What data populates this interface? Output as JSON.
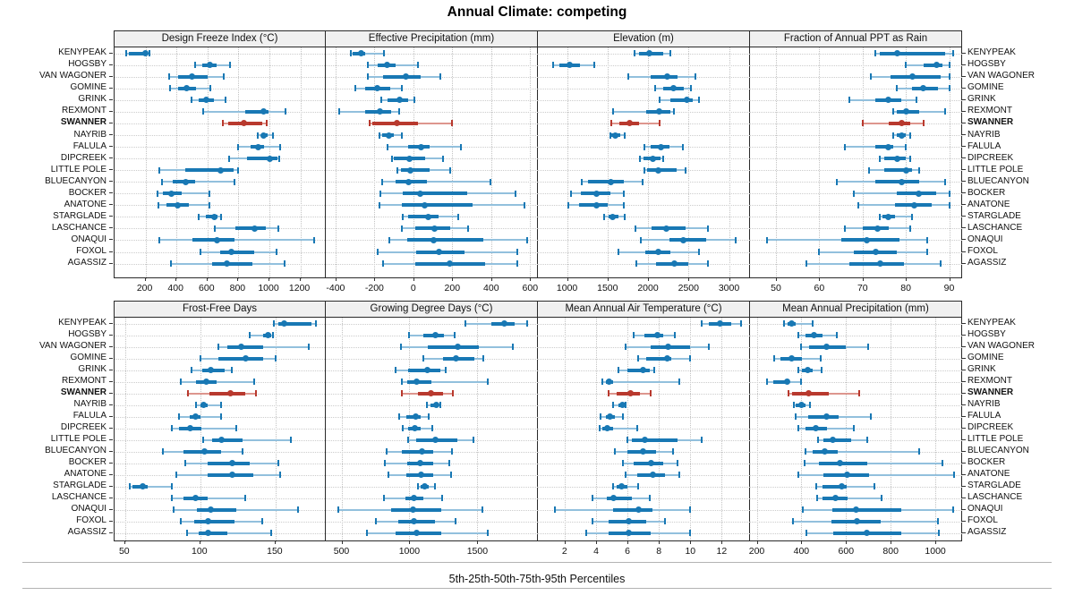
{
  "title": "Annual Climate: competing",
  "caption": "5th-25th-50th-75th-95th Percentiles",
  "highlight_station": "SWANNER",
  "colors": {
    "series_blue": "#1878b4",
    "series_blue_light": "#92c0dd",
    "highlight_red": "#b8392e",
    "highlight_red_light": "#dd968e",
    "strip_bg": "#f0f0f0",
    "panel_border": "#2a2a2a",
    "grid": "#c9c9c9"
  },
  "stations": [
    "KENYPEAK",
    "HOGSBY",
    "VAN WAGONER",
    "GOMINE",
    "GRINK",
    "REXMONT",
    "SWANNER",
    "NAYRIB",
    "FALULA",
    "DIPCREEK",
    "LITTLE POLE",
    "BLUECANYON",
    "BOCKER",
    "ANATONE",
    "STARGLADE",
    "LASCHANCE",
    "ONAQUI",
    "FOXOL",
    "AGASSIZ"
  ],
  "chart_data": {
    "type": "scatter",
    "mark": "dot-whisker (5th/25th/50th/75th/95th percentile ranges per station)",
    "percentile_labels": [
      "5th",
      "25th",
      "50th",
      "75th",
      "95th"
    ],
    "legend": "none",
    "grid": "dotted",
    "panels": [
      {
        "title": "Design Freeze Index (°C)",
        "xlim": [
          0,
          1370
        ],
        "ticks": [
          200,
          400,
          600,
          800,
          1000,
          1200
        ],
        "values": [
          [
            75,
            90,
            200,
            212,
            228
          ],
          [
            520,
            565,
            615,
            660,
            745
          ],
          [
            350,
            410,
            500,
            600,
            705
          ],
          [
            360,
            410,
            465,
            525,
            620
          ],
          [
            495,
            545,
            595,
            640,
            715
          ],
          [
            570,
            845,
            960,
            995,
            1105
          ],
          [
            700,
            735,
            835,
            955,
            980
          ],
          [
            925,
            945,
            965,
            990,
            1025
          ],
          [
            795,
            880,
            925,
            965,
            1070
          ],
          [
            740,
            855,
            1000,
            1050,
            1065
          ],
          [
            290,
            455,
            685,
            770,
            800
          ],
          [
            305,
            375,
            460,
            520,
            775
          ],
          [
            280,
            310,
            365,
            435,
            610
          ],
          [
            285,
            335,
            405,
            480,
            610
          ],
          [
            545,
            590,
            645,
            662,
            690
          ],
          [
            650,
            780,
            905,
            980,
            1055
          ],
          [
            290,
            505,
            660,
            775,
            1290
          ],
          [
            555,
            680,
            755,
            900,
            1045
          ],
          [
            365,
            630,
            725,
            890,
            1100
          ]
        ]
      },
      {
        "title": "Effective Precipitation (mm)",
        "xlim": [
          -450,
          640
        ],
        "ticks": [
          -400,
          -200,
          0,
          200,
          400,
          600
        ],
        "values": [
          [
            -320,
            -310,
            -270,
            -245,
            -150
          ],
          [
            -235,
            -185,
            -135,
            -90,
            25
          ],
          [
            -235,
            -155,
            -40,
            40,
            140
          ],
          [
            -300,
            -250,
            -185,
            -120,
            -60
          ],
          [
            -165,
            -135,
            -70,
            -25,
            5
          ],
          [
            -380,
            -250,
            -170,
            -115,
            -75
          ],
          [
            -225,
            -210,
            -85,
            25,
            200
          ],
          [
            -175,
            -160,
            -125,
            -100,
            -60
          ],
          [
            -135,
            -25,
            40,
            85,
            245
          ],
          [
            -110,
            -100,
            -20,
            60,
            150
          ],
          [
            -80,
            -65,
            -15,
            85,
            190
          ],
          [
            -160,
            -90,
            -25,
            70,
            395
          ],
          [
            -170,
            -55,
            35,
            275,
            525
          ],
          [
            -175,
            -60,
            60,
            305,
            570
          ],
          [
            -55,
            -25,
            75,
            130,
            230
          ],
          [
            -60,
            10,
            110,
            190,
            280
          ],
          [
            -125,
            -30,
            105,
            360,
            585
          ],
          [
            -185,
            15,
            130,
            265,
            535
          ],
          [
            -155,
            10,
            185,
            370,
            535
          ]
        ]
      },
      {
        "title": "Elevation (m)",
        "xlim": [
          640,
          3260
        ],
        "ticks": [
          1000,
          1500,
          2000,
          2500,
          3000
        ],
        "values": [
          [
            1830,
            1890,
            2020,
            2185,
            2280
          ],
          [
            825,
            905,
            1035,
            1155,
            1335
          ],
          [
            1760,
            2035,
            2235,
            2370,
            2580
          ],
          [
            2085,
            2185,
            2315,
            2445,
            2525
          ],
          [
            2140,
            2280,
            2475,
            2555,
            2630
          ],
          [
            1565,
            1980,
            2140,
            2280,
            2325
          ],
          [
            1550,
            1650,
            1770,
            1890,
            2140
          ],
          [
            1530,
            1550,
            1600,
            1660,
            1710
          ],
          [
            1955,
            2035,
            2165,
            2260,
            2435
          ],
          [
            1905,
            1945,
            2060,
            2150,
            2185
          ],
          [
            1960,
            1985,
            2130,
            2350,
            2465
          ],
          [
            1185,
            1260,
            1545,
            1705,
            1935
          ],
          [
            1045,
            1165,
            1360,
            1535,
            1705
          ],
          [
            1010,
            1150,
            1360,
            1500,
            1705
          ],
          [
            1455,
            1510,
            1560,
            1640,
            1715
          ],
          [
            1840,
            2040,
            2230,
            2470,
            2740
          ],
          [
            1910,
            2260,
            2440,
            2720,
            3080
          ],
          [
            1630,
            1965,
            2130,
            2280,
            2625
          ],
          [
            1850,
            2095,
            2325,
            2500,
            2740
          ]
        ]
      },
      {
        "title": "Fraction of Annual PPT as Rain",
        "xlim": [
          44,
          93
        ],
        "ticks": [
          50,
          60,
          70,
          80,
          90
        ],
        "values": [
          [
            73,
            74,
            78,
            89,
            91
          ],
          [
            80,
            84,
            87,
            88.5,
            90
          ],
          [
            72,
            76.5,
            81.5,
            88,
            90
          ],
          [
            78,
            81.5,
            84,
            87.5,
            90
          ],
          [
            67,
            73,
            76,
            79,
            82.5
          ],
          [
            77,
            78,
            80,
            83,
            89
          ],
          [
            70,
            76,
            79,
            81,
            84
          ],
          [
            77,
            78,
            79,
            80,
            81
          ],
          [
            66,
            73,
            76,
            77,
            80
          ],
          [
            74,
            75,
            78,
            80,
            81
          ],
          [
            71.5,
            75,
            80,
            81.5,
            83
          ],
          [
            64,
            73,
            79,
            83,
            89
          ],
          [
            68,
            78,
            83,
            87,
            90
          ],
          [
            69,
            77.5,
            82,
            86,
            90
          ],
          [
            74,
            74.5,
            76,
            77.5,
            81.5
          ],
          [
            66,
            70,
            73.5,
            76,
            81
          ],
          [
            48,
            65,
            71,
            78.5,
            85
          ],
          [
            60,
            68,
            73,
            78,
            85
          ],
          [
            57,
            67,
            74,
            79.5,
            88
          ]
        ]
      },
      {
        "title": "Frost-Free Days",
        "xlim": [
          43,
          184
        ],
        "ticks": [
          50,
          100,
          150
        ],
        "values": [
          [
            149,
            152,
            156,
            174,
            177
          ],
          [
            133,
            142,
            145,
            147,
            148
          ],
          [
            112,
            118,
            127,
            142,
            172
          ],
          [
            100,
            112,
            130,
            142,
            150
          ],
          [
            94,
            101,
            107,
            116,
            121
          ],
          [
            87,
            97,
            104,
            111,
            136
          ],
          [
            92,
            106,
            120,
            130,
            137
          ],
          [
            97,
            100,
            102,
            105,
            114
          ],
          [
            86,
            93,
            97,
            100,
            114
          ],
          [
            81,
            86,
            93,
            101,
            124
          ],
          [
            102,
            108,
            114,
            128,
            160
          ],
          [
            75,
            89,
            103,
            114,
            128
          ],
          [
            90,
            105,
            121,
            133,
            152
          ],
          [
            84,
            105,
            121,
            135,
            153
          ],
          [
            53,
            55,
            62,
            65,
            81
          ],
          [
            81,
            89,
            97,
            105,
            130
          ],
          [
            82,
            98,
            107,
            124,
            165
          ],
          [
            87,
            96,
            105,
            123,
            141
          ],
          [
            91,
            99,
            105,
            118,
            147
          ]
        ]
      },
      {
        "title": "Growing Degree Days (°C)",
        "xlim": [
          385,
          1945
        ],
        "ticks": [
          500,
          1000,
          1500
        ],
        "values": [
          [
            1410,
            1600,
            1695,
            1775,
            1865
          ],
          [
            995,
            1105,
            1190,
            1255,
            1330
          ],
          [
            935,
            1135,
            1355,
            1510,
            1760
          ],
          [
            1105,
            1245,
            1345,
            1480,
            1545
          ],
          [
            900,
            990,
            1130,
            1230,
            1265
          ],
          [
            945,
            985,
            1055,
            1160,
            1575
          ],
          [
            945,
            1060,
            1155,
            1245,
            1320
          ],
          [
            1130,
            1155,
            1200,
            1215,
            1230
          ],
          [
            925,
            975,
            1045,
            1085,
            1140
          ],
          [
            950,
            990,
            1040,
            1085,
            1165
          ],
          [
            990,
            1050,
            1190,
            1355,
            1470
          ],
          [
            835,
            945,
            1090,
            1175,
            1315
          ],
          [
            820,
            985,
            1080,
            1175,
            1290
          ],
          [
            845,
            980,
            1085,
            1175,
            1305
          ],
          [
            1065,
            1085,
            1115,
            1140,
            1190
          ],
          [
            810,
            970,
            1030,
            1105,
            1240
          ],
          [
            480,
            865,
            1025,
            1235,
            1535
          ],
          [
            750,
            920,
            1035,
            1190,
            1340
          ],
          [
            690,
            895,
            1055,
            1235,
            1575
          ]
        ]
      },
      {
        "title": "Mean Annual Air Temperature (°C)",
        "xlim": [
          0.3,
          13.8
        ],
        "ticks": [
          2,
          4,
          6,
          8,
          10,
          12
        ],
        "values": [
          [
            10.7,
            11.2,
            11.9,
            12.6,
            13.2
          ],
          [
            6.4,
            7.1,
            7.9,
            8.3,
            9.0
          ],
          [
            5.9,
            7.5,
            8.6,
            10.0,
            11.2
          ],
          [
            6.7,
            7.2,
            8.5,
            8.8,
            10.0
          ],
          [
            5.4,
            6.0,
            7.0,
            7.4,
            7.7
          ],
          [
            4.4,
            4.6,
            4.8,
            5.1,
            9.3
          ],
          [
            4.8,
            5.3,
            6.2,
            6.8,
            7.5
          ],
          [
            5.1,
            5.4,
            5.7,
            5.8,
            5.9
          ],
          [
            4.3,
            4.6,
            4.9,
            5.2,
            5.7
          ],
          [
            4.2,
            4.4,
            4.7,
            5.1,
            6.6
          ],
          [
            6.0,
            6.3,
            7.1,
            9.2,
            10.7
          ],
          [
            5.2,
            6.0,
            7.0,
            7.8,
            8.9
          ],
          [
            5.7,
            6.4,
            7.5,
            8.3,
            9.2
          ],
          [
            5.9,
            6.6,
            7.6,
            8.4,
            9.3
          ],
          [
            5.1,
            5.3,
            5.6,
            6.0,
            6.7
          ],
          [
            3.8,
            4.7,
            5.1,
            6.3,
            7.4
          ],
          [
            1.4,
            5.1,
            6.7,
            7.6,
            10.0
          ],
          [
            3.8,
            4.8,
            6.1,
            7.2,
            8.4
          ],
          [
            3.4,
            4.8,
            6.1,
            7.5,
            10.0
          ]
        ]
      },
      {
        "title": "Mean Annual Precipitation (mm)",
        "xlim": [
          170,
          1120
        ],
        "ticks": [
          200,
          400,
          600,
          800,
          1000
        ],
        "values": [
          [
            322,
            340,
            358,
            373,
            452
          ],
          [
            385,
            418,
            456,
            493,
            558
          ],
          [
            398,
            436,
            513,
            598,
            698
          ],
          [
            280,
            306,
            356,
            402,
            485
          ],
          [
            385,
            402,
            429,
            452,
            489
          ],
          [
            247,
            273,
            336,
            347,
            400
          ],
          [
            343,
            359,
            432,
            523,
            660
          ],
          [
            367,
            376,
            399,
            419,
            440
          ],
          [
            373,
            429,
            513,
            569,
            709
          ],
          [
            385,
            419,
            463,
            513,
            636
          ],
          [
            476,
            499,
            539,
            623,
            696
          ],
          [
            419,
            449,
            505,
            565,
            927
          ],
          [
            413,
            480,
            572,
            696,
            1032
          ],
          [
            387,
            500,
            605,
            703,
            1085
          ],
          [
            465,
            496,
            579,
            605,
            727
          ],
          [
            469,
            493,
            553,
            607,
            760
          ],
          [
            407,
            540,
            643,
            849,
            1080
          ],
          [
            363,
            536,
            649,
            756,
            1012
          ],
          [
            423,
            543,
            693,
            849,
            1016
          ]
        ]
      }
    ]
  }
}
